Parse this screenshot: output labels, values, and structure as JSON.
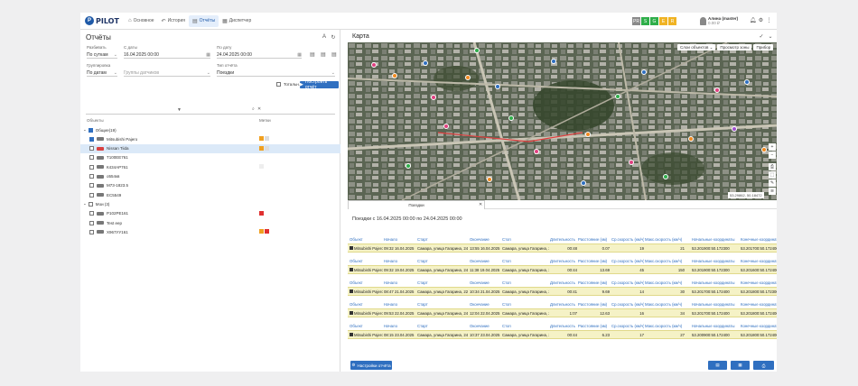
{
  "app": {
    "logo": "PILOT",
    "logo_mark": "P"
  },
  "nav": [
    {
      "label": "Основное",
      "icon": "home-icon",
      "glyph": "⌂"
    },
    {
      "label": "История",
      "icon": "history-icon",
      "glyph": "↶"
    },
    {
      "label": "Отчёты",
      "icon": "reports-icon",
      "glyph": "▤"
    },
    {
      "label": "Диспетчер",
      "icon": "dispatcher-icon",
      "glyph": "▦"
    }
  ],
  "badges": [
    {
      "text": "PR",
      "color": "#8a8a8a"
    },
    {
      "text": "S",
      "color": "#2fae4a"
    },
    {
      "text": "G",
      "color": "#2fae4a"
    },
    {
      "text": "E",
      "color": "#f0b323"
    },
    {
      "text": "R",
      "color": "#f0b323"
    }
  ],
  "user": {
    "name": "Алина (master)",
    "sub": "0.00 ₽"
  },
  "reports": {
    "title": "Отчёты",
    "period_label": "Разбивать",
    "period_value": "По суткам",
    "from_label": "С даты",
    "from_value": "16.04.2025 00:00",
    "to_label": "По дату",
    "to_value": "24.04.2025 00:00",
    "group_label": "Группировка",
    "group_value": "По датам",
    "sensors_placeholder": "Группы датчиков",
    "type_label": "Тип отчёта",
    "type_value": "Поездки",
    "total_label": "Тотальн.",
    "build_button": "Построить отчёт",
    "col_objects": "Объекты",
    "col_tags": "Метки"
  },
  "tree": [
    {
      "label": "Общие(19)",
      "level": 0,
      "group": true,
      "checked": true
    },
    {
      "label": "Mitsubishi Pajero",
      "level": 1,
      "checked": true,
      "car": "#777",
      "swatches": [
        "#f0a020",
        "#dddddd"
      ]
    },
    {
      "label": "Nissan Tiida",
      "level": 1,
      "checked": false,
      "selected": true,
      "car": "#d94040",
      "swatches": [
        "#f0a020",
        "#dddddd"
      ]
    },
    {
      "label": "Т100ЕЕ761",
      "level": 1,
      "checked": false,
      "car": "#777",
      "swatches": []
    },
    {
      "label": "К434АР761",
      "level": 1,
      "checked": false,
      "car": "#777",
      "swatches": [
        "#eeeeee"
      ]
    },
    {
      "label": "о554кв",
      "level": 1,
      "checked": false,
      "car": "#777",
      "swatches": []
    },
    {
      "label": "М73-1823.5",
      "level": 1,
      "checked": false,
      "car": "#777",
      "swatches": []
    },
    {
      "label": "ЕС5549",
      "level": 1,
      "checked": false,
      "car": "#777",
      "swatches": []
    },
    {
      "label": "Мои (3)",
      "level": 0,
      "group": true,
      "checked": false
    },
    {
      "label": "Р102РЕ161",
      "level": 1,
      "checked": false,
      "car": "#777",
      "swatches": [
        "#e03030"
      ]
    },
    {
      "label": "Test eep",
      "level": 1,
      "checked": false,
      "car": "#777",
      "swatches": []
    },
    {
      "label": "Х967УУ161",
      "level": 1,
      "checked": false,
      "car": "#777",
      "swatches": [
        "#f0a020",
        "#e03030"
      ]
    }
  ],
  "map": {
    "title": "Карта",
    "layers_button": "Слои объектов",
    "review_button": "Просмотр зоны",
    "ruler_button": "Прибор",
    "coords": "53.29862, 50.18472",
    "markers": [
      {
        "x": 0.06,
        "y": 0.14,
        "color": "#e04080"
      },
      {
        "x": 0.11,
        "y": 0.21,
        "color": "#f08a20"
      },
      {
        "x": 0.18,
        "y": 0.13,
        "color": "#2f6fc0"
      },
      {
        "x": 0.2,
        "y": 0.35,
        "color": "#e04080"
      },
      {
        "x": 0.23,
        "y": 0.53,
        "color": "#e04080"
      },
      {
        "x": 0.28,
        "y": 0.22,
        "color": "#f08a20"
      },
      {
        "x": 0.3,
        "y": 0.05,
        "color": "#2fae4a"
      },
      {
        "x": 0.35,
        "y": 0.28,
        "color": "#2f6fc0"
      },
      {
        "x": 0.38,
        "y": 0.48,
        "color": "#2fae4a"
      },
      {
        "x": 0.44,
        "y": 0.69,
        "color": "#e04080"
      },
      {
        "x": 0.48,
        "y": 0.12,
        "color": "#2f6fc0"
      },
      {
        "x": 0.56,
        "y": 0.58,
        "color": "#f08a20"
      },
      {
        "x": 0.63,
        "y": 0.34,
        "color": "#2fae4a"
      },
      {
        "x": 0.69,
        "y": 0.19,
        "color": "#2f6fc0"
      },
      {
        "x": 0.74,
        "y": 0.85,
        "color": "#2fae4a"
      },
      {
        "x": 0.8,
        "y": 0.61,
        "color": "#f08a20"
      },
      {
        "x": 0.86,
        "y": 0.3,
        "color": "#e04080"
      },
      {
        "x": 0.9,
        "y": 0.55,
        "color": "#a050d0"
      },
      {
        "x": 0.93,
        "y": 0.25,
        "color": "#2f6fc0"
      },
      {
        "x": 0.97,
        "y": 0.68,
        "color": "#f08a20"
      },
      {
        "x": 0.55,
        "y": 0.89,
        "color": "#2f6fc0"
      },
      {
        "x": 0.14,
        "y": 0.78,
        "color": "#2fae4a"
      },
      {
        "x": 0.33,
        "y": 0.87,
        "color": "#f08a20"
      },
      {
        "x": 0.66,
        "y": 0.76,
        "color": "#e04080"
      }
    ]
  },
  "report": {
    "tab_label": "Поездки",
    "title": "Поездки с 16.04.2025 00:00 по 24.04.2025 00:00",
    "headers": [
      "Объект",
      "Начало",
      "Старт",
      "Окончание",
      "Стоп",
      "Длительность",
      "Расстояние (км)",
      "Ср.скорость (км/ч)",
      "Макс.скорость (км/ч)",
      "Начальные координаты",
      "Конечные координаты"
    ],
    "rows": [
      [
        "Mitsubishi Pajero",
        "09:32 16.04.2025",
        "Самара, улица Гагарина, 24",
        "13:55 16.04.2025",
        "Самара, улица Гагарина, 24",
        "00:48",
        "0.07",
        "19",
        "21",
        "53.201900:50.172300",
        "53.201700:50.172400"
      ],
      [
        "Mitsubishi Pajero",
        "09:32 19.04.2025",
        "Самара, улица Гагарина, 24",
        "11:38 19.04.2025",
        "Самара, улица Гагарина, 24",
        "00:44",
        "13.69",
        "45",
        "150",
        "53.201900:50.172300",
        "53.201600:50.172400"
      ],
      [
        "Mitsubishi Pajero",
        "08:47 21.04.2025",
        "Самара, улица Гагарина, 22с1",
        "10:34 21.04.2025",
        "Самара, улица Гагарина, 24",
        "00:41",
        "9.69",
        "14",
        "30",
        "53.201700:50.172400",
        "53.201800:50.172300"
      ],
      [
        "Mitsubishi Pajero",
        "09:53 22.04.2025",
        "Самара, улица Гагарина, 24",
        "12:04 22.04.2025",
        "Самара, улица Гагарина, 24",
        "1:07",
        "12.63",
        "16",
        "34",
        "53.201700:50.172400",
        "53.201800:50.172400"
      ],
      [
        "Mitsubishi Pajero",
        "08:15 23.04.2025",
        "Самара, улица Гагарина, 24",
        "10:37 23.04.2025",
        "Самара, улица Гагарина, 24",
        "00:44",
        "6.23",
        "17",
        "27",
        "53.200900:50.172400",
        "53.201800:50.172400"
      ]
    ],
    "settings_button": "Настройки отчёта"
  }
}
